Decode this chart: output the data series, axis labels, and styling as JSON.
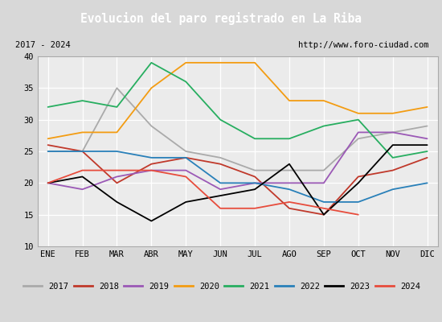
{
  "title": "Evolucion del paro registrado en La Riba",
  "subtitle_left": "2017 - 2024",
  "subtitle_right": "http://www.foro-ciudad.com",
  "title_color": "#4472c4",
  "months": [
    "ENE",
    "FEB",
    "MAR",
    "ABR",
    "MAY",
    "JUN",
    "JUL",
    "AGO",
    "SEP",
    "OCT",
    "NOV",
    "DIC"
  ],
  "ylim": [
    10,
    40
  ],
  "yticks": [
    10,
    15,
    20,
    25,
    30,
    35,
    40
  ],
  "series": {
    "2017": {
      "color": "#aaaaaa",
      "values": [
        25,
        25,
        35,
        29,
        25,
        24,
        22,
        22,
        22,
        27,
        28,
        29
      ]
    },
    "2018": {
      "color": "#c0392b",
      "values": [
        26,
        25,
        20,
        23,
        24,
        23,
        21,
        16,
        15,
        21,
        22,
        24
      ]
    },
    "2019": {
      "color": "#9b59b6",
      "values": [
        20,
        19,
        21,
        22,
        22,
        19,
        20,
        20,
        20,
        28,
        28,
        27
      ]
    },
    "2020": {
      "color": "#f39c12",
      "values": [
        27,
        28,
        28,
        35,
        39,
        39,
        39,
        33,
        33,
        31,
        31,
        32
      ]
    },
    "2021": {
      "color": "#27ae60",
      "values": [
        32,
        33,
        32,
        39,
        36,
        30,
        27,
        27,
        29,
        30,
        24,
        25
      ]
    },
    "2022": {
      "color": "#2980b9",
      "values": [
        25,
        25,
        25,
        24,
        24,
        20,
        20,
        19,
        17,
        17,
        19,
        20
      ]
    },
    "2023": {
      "color": "#000000",
      "values": [
        20,
        21,
        17,
        14,
        17,
        18,
        19,
        23,
        15,
        20,
        26,
        26
      ]
    },
    "2024": {
      "color": "#e74c3c",
      "values": [
        20,
        22,
        22,
        22,
        21,
        16,
        16,
        17,
        16,
        15,
        null,
        null
      ]
    }
  },
  "legend_order": [
    "2017",
    "2018",
    "2019",
    "2020",
    "2021",
    "2022",
    "2023",
    "2024"
  ],
  "background_color": "#d8d8d8",
  "plot_bg_color": "#ebebeb",
  "grid_color": "#ffffff"
}
